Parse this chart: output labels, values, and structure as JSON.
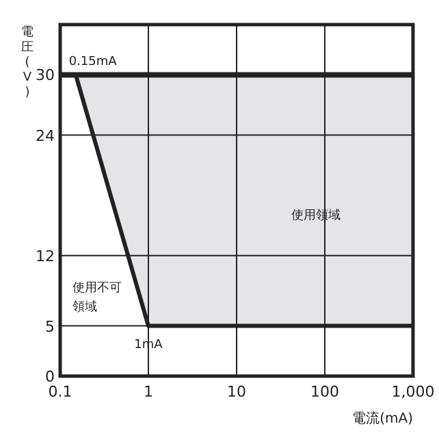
{
  "chart_data": {
    "type": "line",
    "xlabel": "電流(mA)",
    "ylabel": "電圧(V)",
    "log": "x",
    "grid": true,
    "xlim": [
      0.1,
      1000
    ],
    "xticks": [
      0.1,
      1,
      10,
      100,
      {
        "value": 1000,
        "label": "1,000"
      }
    ],
    "ylim": [
      0,
      35
    ],
    "yticks": [
      0,
      5,
      12,
      24,
      30
    ],
    "series": [
      {
        "color": "#222222",
        "x": [
          0.15,
          1,
          1000
        ],
        "values": [
          30,
          5,
          5
        ],
        "lower": [
          30,
          5,
          5
        ],
        "upper": [
          30,
          30,
          30
        ]
      }
    ],
    "ref_lines": [
      {
        "axis": "y",
        "value": 30,
        "color": "#222222"
      }
    ],
    "annotations": [
      {
        "text": "0.15mA",
        "x": 0.15,
        "y": 30
      },
      {
        "text": "1mA",
        "x": 1,
        "y": 5
      },
      "使用領域",
      "使用不可領域"
    ]
  }
}
